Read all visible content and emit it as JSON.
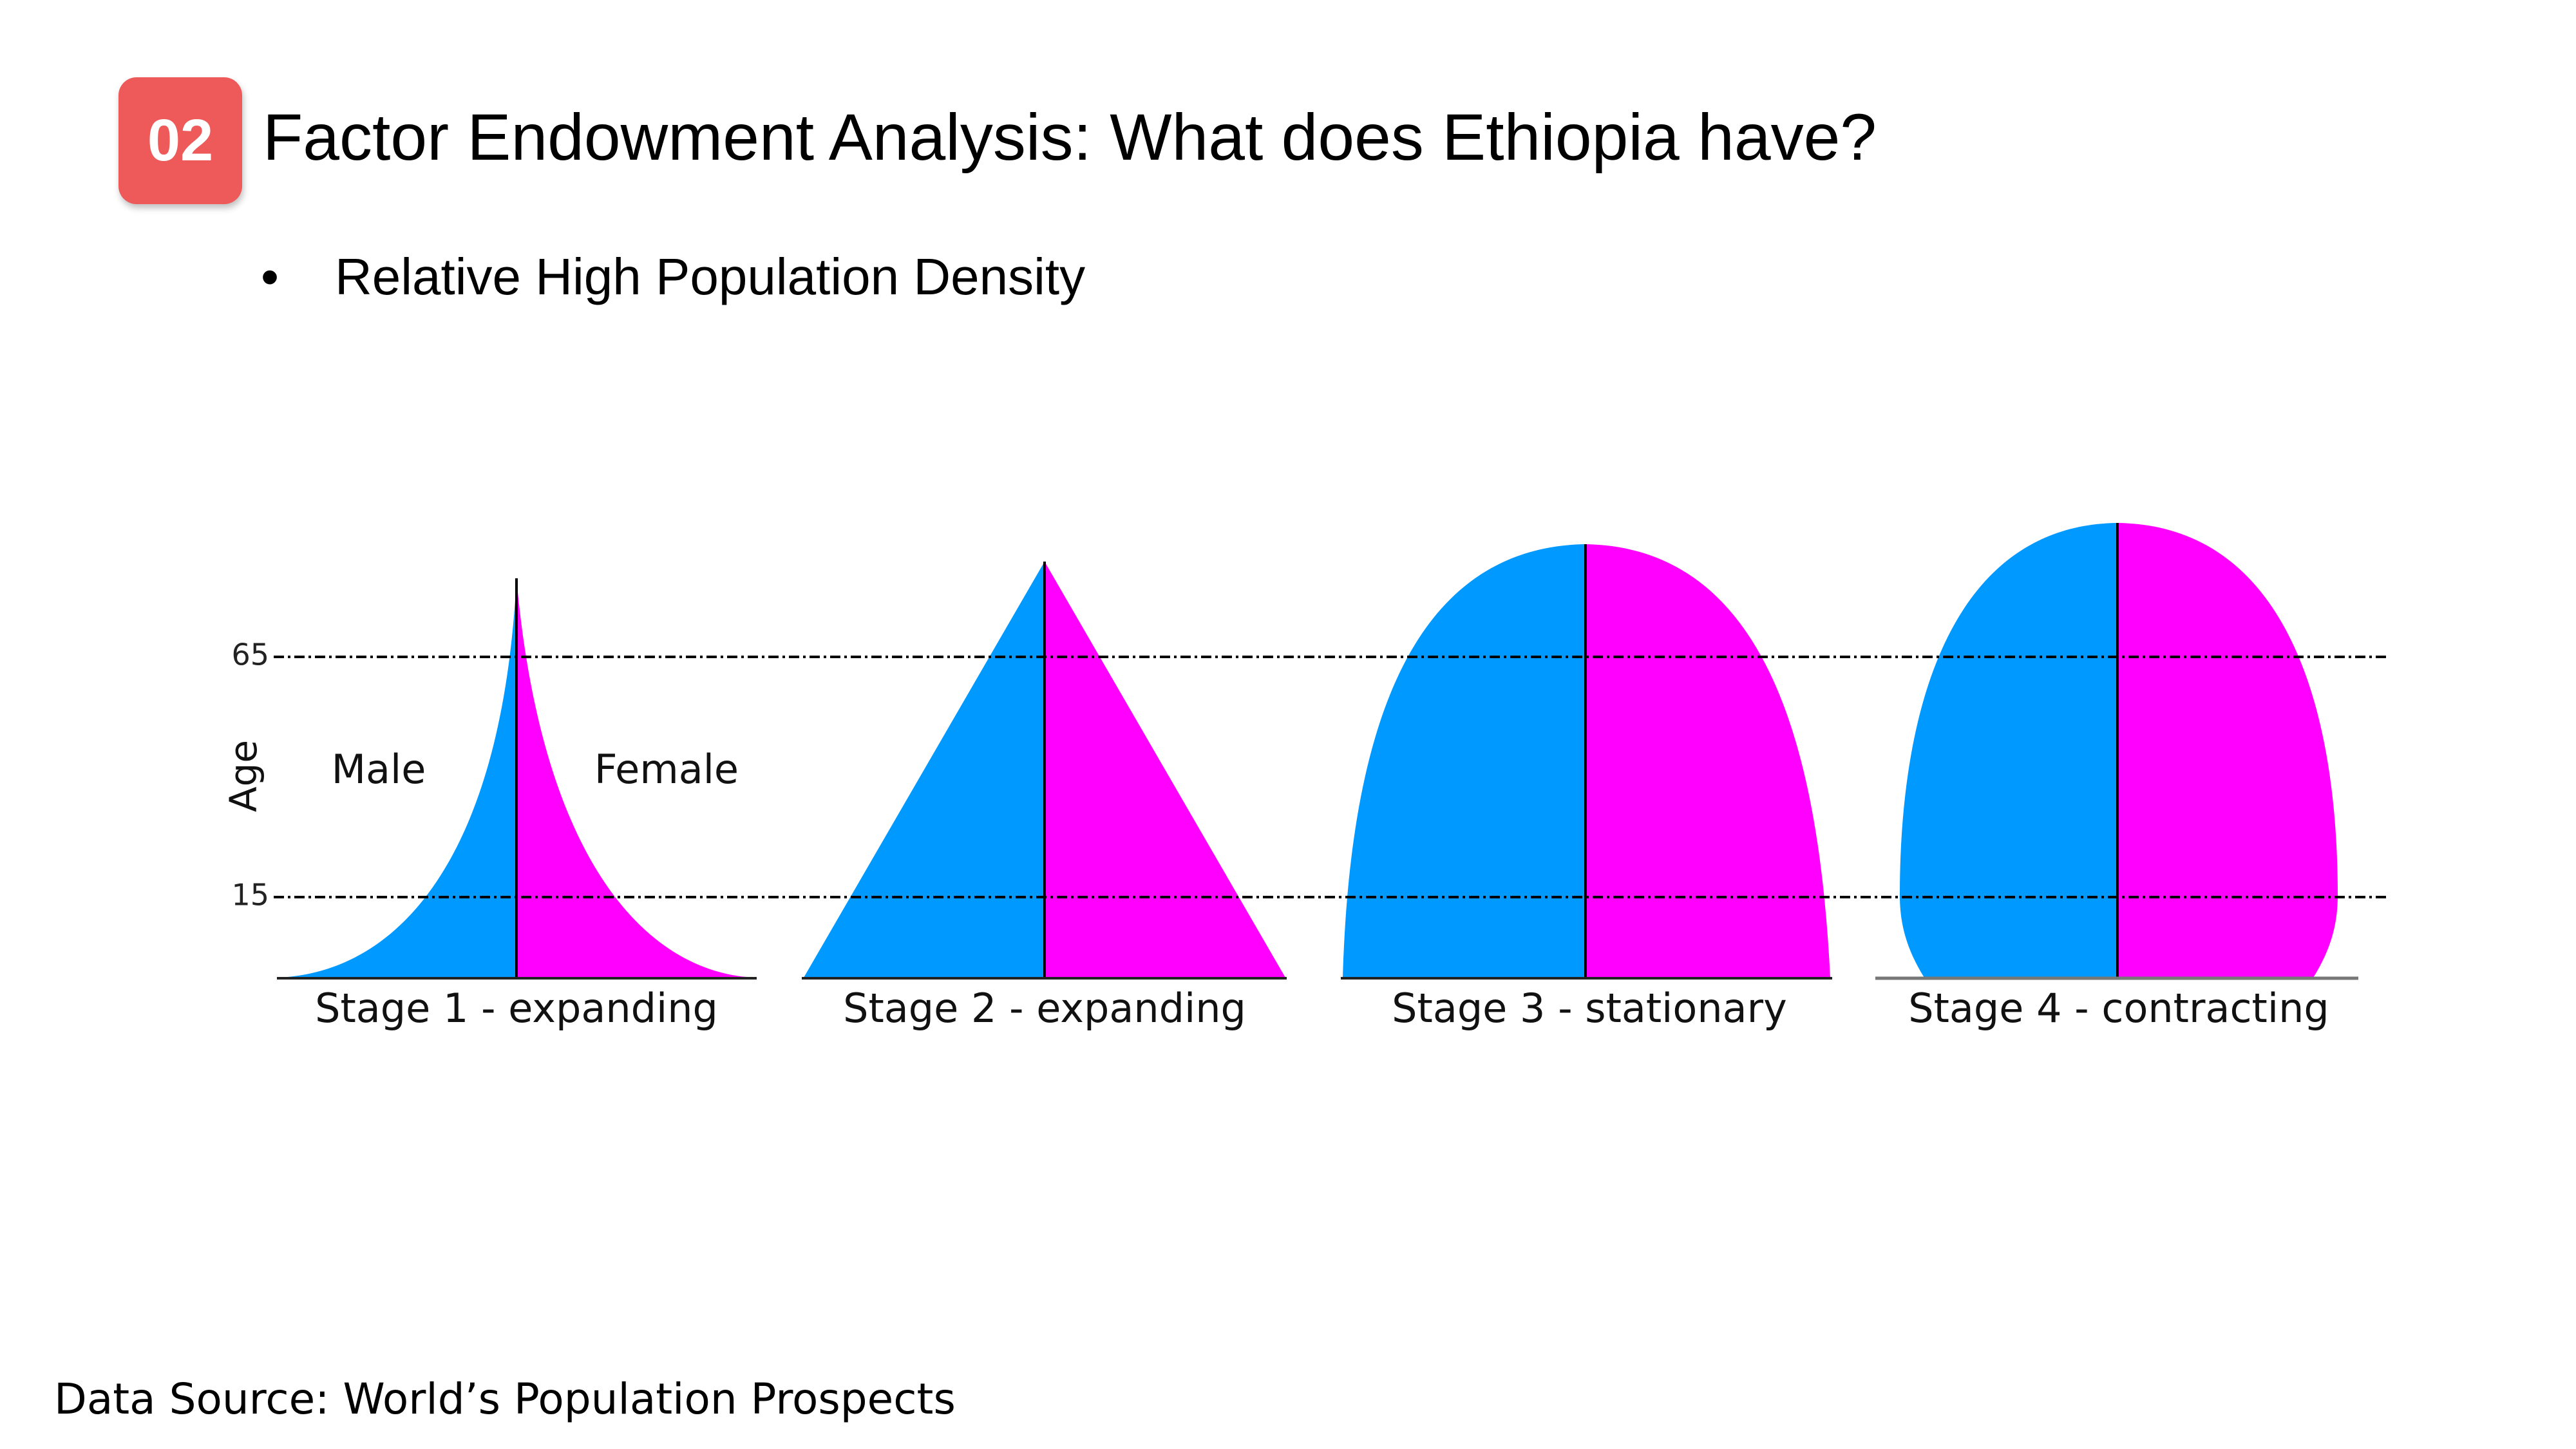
{
  "slide": {
    "badge": "02",
    "title": "Factor Endowment Analysis: What does Ethiopia have?",
    "bullet_symbol": "•",
    "bullet_text": "Relative High Population Density",
    "source": "Data Source: World’s Population Prospects"
  },
  "colors": {
    "accent": "#ee5a5a",
    "male": "#0099ff",
    "female": "#ff00ff"
  },
  "diagram": {
    "y_axis_label": "Age",
    "age_ticks": [
      "65",
      "15"
    ],
    "male_label": "Male",
    "female_label": "Female",
    "stages": [
      {
        "label": "Stage 1 - expanding",
        "shape": "concave-pyramid"
      },
      {
        "label": "Stage 2 - expanding",
        "shape": "triangle"
      },
      {
        "label": "Stage 3 - stationary",
        "shape": "dome"
      },
      {
        "label": "Stage 4 - contracting",
        "shape": "bell"
      }
    ]
  }
}
